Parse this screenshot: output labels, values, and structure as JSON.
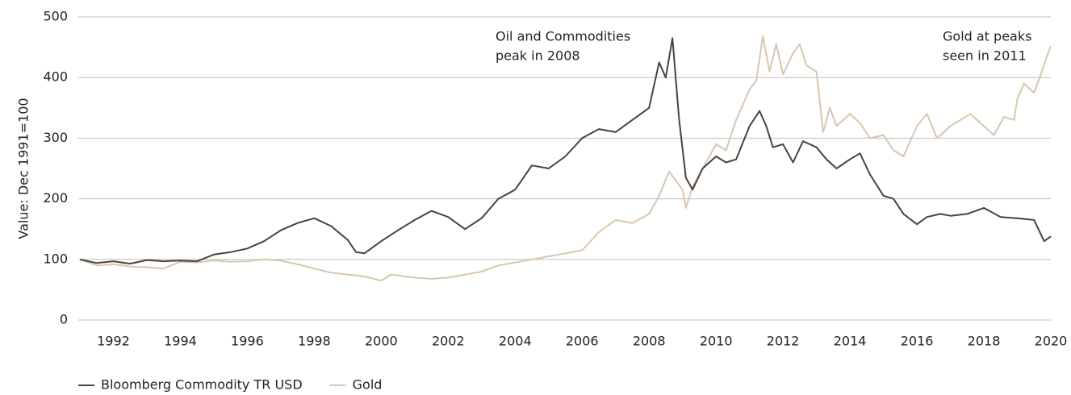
{
  "chart_data": {
    "type": "line",
    "y_label": "Value: Dec 1991=100",
    "xlim": [
      1991,
      2020
    ],
    "xticks": [
      1992,
      1994,
      1996,
      1998,
      2000,
      2002,
      2004,
      2006,
      2008,
      2010,
      2012,
      2014,
      2016,
      2018,
      2020
    ],
    "ylim": [
      0,
      500
    ],
    "yticks": [
      0,
      100,
      200,
      300,
      400,
      500
    ],
    "grid": true,
    "legend": "bottom-left",
    "annotations": [
      [
        "Oil and Commodities",
        "peak in 2008"
      ],
      [
        "Gold at peaks",
        "seen in 2011"
      ]
    ],
    "series": [
      {
        "name": "Bloomberg Commodity TR USD",
        "color": "#4a423d",
        "x": [
          1991,
          1991.5,
          1992,
          1992.5,
          1993,
          1993.5,
          1994,
          1994.5,
          1995,
          1995.5,
          1996,
          1996.5,
          1997,
          1997.5,
          1998,
          1998.5,
          1999,
          1999.25,
          1999.5,
          2000,
          2000.5,
          2001,
          2001.5,
          2002,
          2002.5,
          2003,
          2003.5,
          2004,
          2004.5,
          2005,
          2005.5,
          2006,
          2006.5,
          2007,
          2007.5,
          2008,
          2008.3,
          2008.5,
          2008.7,
          2008.9,
          2009.1,
          2009.3,
          2009.6,
          2010,
          2010.3,
          2010.6,
          2011,
          2011.3,
          2011.5,
          2011.7,
          2012,
          2012.3,
          2012.6,
          2013,
          2013.3,
          2013.6,
          2014,
          2014.3,
          2014.6,
          2015,
          2015.3,
          2015.6,
          2016,
          2016.3,
          2016.7,
          2017,
          2017.5,
          2018,
          2018.5,
          2019,
          2019.5,
          2019.8,
          2020
        ],
        "values": [
          100,
          94,
          97,
          93,
          99,
          97,
          98,
          97,
          108,
          112,
          118,
          130,
          148,
          160,
          168,
          155,
          132,
          112,
          110,
          130,
          148,
          165,
          180,
          170,
          150,
          168,
          200,
          215,
          255,
          250,
          270,
          300,
          315,
          310,
          330,
          350,
          425,
          400,
          465,
          330,
          235,
          215,
          250,
          270,
          260,
          265,
          320,
          345,
          320,
          285,
          290,
          260,
          295,
          285,
          265,
          250,
          265,
          275,
          240,
          205,
          200,
          175,
          158,
          170,
          175,
          172,
          175,
          185,
          170,
          168,
          165,
          130,
          138
        ]
      },
      {
        "name": "Gold",
        "color": "#d8c6ad",
        "x": [
          1991,
          1991.5,
          1992,
          1992.5,
          1993,
          1993.5,
          1994,
          1994.5,
          1995,
          1995.5,
          1996,
          1996.5,
          1997,
          1997.5,
          1998,
          1998.5,
          1999,
          1999.5,
          2000,
          2000.3,
          2000.7,
          2001,
          2001.5,
          2002,
          2002.5,
          2003,
          2003.5,
          2004,
          2004.5,
          2005,
          2005.5,
          2006,
          2006.5,
          2007,
          2007.5,
          2008,
          2008.3,
          2008.6,
          2008.8,
          2009,
          2009.1,
          2009.3,
          2009.6,
          2010,
          2010.3,
          2010.6,
          2011,
          2011.2,
          2011.4,
          2011.6,
          2011.8,
          2012,
          2012.3,
          2012.5,
          2012.7,
          2013,
          2013.2,
          2013.4,
          2013.6,
          2014,
          2014.3,
          2014.6,
          2015,
          2015.3,
          2015.6,
          2016,
          2016.3,
          2016.6,
          2017,
          2017.3,
          2017.6,
          2018,
          2018.3,
          2018.6,
          2018.9,
          2019,
          2019.2,
          2019.5,
          2019.7,
          2019.85,
          2020
        ],
        "values": [
          100,
          90,
          92,
          88,
          87,
          85,
          96,
          95,
          98,
          96,
          97,
          100,
          98,
          92,
          85,
          78,
          75,
          72,
          65,
          75,
          72,
          70,
          68,
          70,
          75,
          80,
          90,
          95,
          100,
          105,
          110,
          115,
          145,
          165,
          160,
          175,
          205,
          245,
          230,
          215,
          185,
          220,
          250,
          290,
          280,
          330,
          380,
          395,
          468,
          410,
          455,
          405,
          440,
          455,
          420,
          410,
          310,
          350,
          320,
          340,
          325,
          300,
          305,
          280,
          270,
          320,
          340,
          300,
          320,
          330,
          340,
          320,
          305,
          335,
          330,
          365,
          390,
          375,
          405,
          430,
          452
        ]
      }
    ]
  }
}
